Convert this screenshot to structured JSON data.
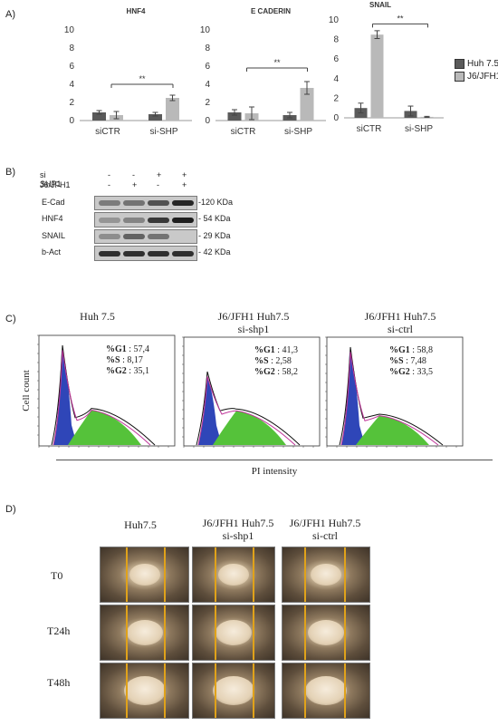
{
  "panel_labels": {
    "a": "A)",
    "b": "B)",
    "c": "C)",
    "d": "D)"
  },
  "chart_colors": {
    "huh": "#5a5a5a",
    "j6": "#b9b9b9"
  },
  "legend": {
    "huh": "Huh 7.5",
    "j6": "J6/JFH1"
  },
  "chart_data": [
    {
      "type": "bar",
      "title": "HNF4",
      "categories": [
        "siCTR",
        "si-SHP"
      ],
      "ylim": [
        0,
        10
      ],
      "yticks": [
        0,
        2,
        4,
        6,
        8,
        10
      ],
      "series": [
        {
          "name": "Huh 7.5",
          "values": [
            0.9,
            0.7
          ],
          "errors": [
            0.2,
            0.2
          ]
        },
        {
          "name": "J6/JFH1",
          "values": [
            0.6,
            2.5
          ],
          "errors": [
            0.4,
            0.3
          ]
        }
      ],
      "significance": {
        "label": "**",
        "value": 4.0
      }
    },
    {
      "type": "bar",
      "title": "E CADERIN",
      "categories": [
        "siCTR",
        "si-SHP"
      ],
      "ylim": [
        0,
        10
      ],
      "yticks": [
        0,
        2,
        4,
        6,
        8,
        10
      ],
      "series": [
        {
          "name": "Huh 7.5",
          "values": [
            0.9,
            0.6
          ],
          "errors": [
            0.3,
            0.3
          ]
        },
        {
          "name": "J6/JFH1",
          "values": [
            0.8,
            3.6
          ],
          "errors": [
            0.7,
            0.7
          ]
        }
      ],
      "significance": {
        "label": "**",
        "value": 5.8
      }
    },
    {
      "type": "bar",
      "title": "SNAIL",
      "categories": [
        "siCTR",
        "si-SHP"
      ],
      "ylim": [
        0,
        10
      ],
      "yticks": [
        0,
        2,
        4,
        6,
        8,
        10
      ],
      "series": [
        {
          "name": "Huh 7.5",
          "values": [
            1.0,
            0.7
          ],
          "errors": [
            0.5,
            0.5
          ]
        },
        {
          "name": "J6/JFH1",
          "values": [
            8.5,
            0.1
          ],
          "errors": [
            0.4,
            0.05
          ]
        }
      ],
      "significance": {
        "label": "**",
        "value": 9.6
      }
    }
  ],
  "western": {
    "header_rows": [
      {
        "label": "si SHP1",
        "marks": [
          "-",
          "-",
          "+",
          "+"
        ]
      },
      {
        "label": "J6/JFH1",
        "marks": [
          "-",
          "+",
          "-",
          "+"
        ]
      }
    ],
    "rows": [
      {
        "name": "E-Cad",
        "kda": "-120 KDa",
        "intensity": [
          0.45,
          0.5,
          0.7,
          0.95
        ]
      },
      {
        "name": "HNF4",
        "kda": "- 54 KDa",
        "intensity": [
          0.3,
          0.4,
          0.85,
          1.0
        ]
      },
      {
        "name": "SNAIL",
        "kda": "- 29 KDa",
        "intensity": [
          0.35,
          0.6,
          0.5,
          0.0
        ]
      },
      {
        "name": "b-Act",
        "kda": "- 42 KDa",
        "intensity": [
          0.9,
          0.9,
          0.9,
          0.9
        ]
      }
    ]
  },
  "flow": {
    "ylabel": "Cell count",
    "xlabel": "PI intensity",
    "plots": [
      {
        "title": "Huh 7.5",
        "subtitle": "",
        "g1_label": "%G1",
        "g1": ": 57,4",
        "s_label": "%S",
        "s": ": 8,17",
        "g2_label": "%G2",
        "g2": ": 35,1"
      },
      {
        "title": "J6/JFH1 Huh7.5",
        "subtitle": "si-shp1",
        "g1_label": "%G1",
        "g1": ": 41,3",
        "s_label": "%S",
        "s": ": 2,58",
        "g2_label": "%G2",
        "g2": ": 58,2"
      },
      {
        "title": "J6/JFH1 Huh7.5",
        "subtitle": "si-ctrl",
        "g1_label": "%G1",
        "g1": ": 58,8",
        "s_label": "%S",
        "s": ": 7,48",
        "g2_label": "%G2",
        "g2": ": 33,5"
      }
    ]
  },
  "scratch": {
    "columns": [
      {
        "title": "Huh7.5",
        "subtitle": ""
      },
      {
        "title": "J6/JFH1 Huh7.5",
        "subtitle": "si-shp1"
      },
      {
        "title": "J6/JFH1 Huh7.5",
        "subtitle": "si-ctrl"
      }
    ],
    "rows": [
      "T0",
      "T24h",
      "T48h"
    ]
  }
}
